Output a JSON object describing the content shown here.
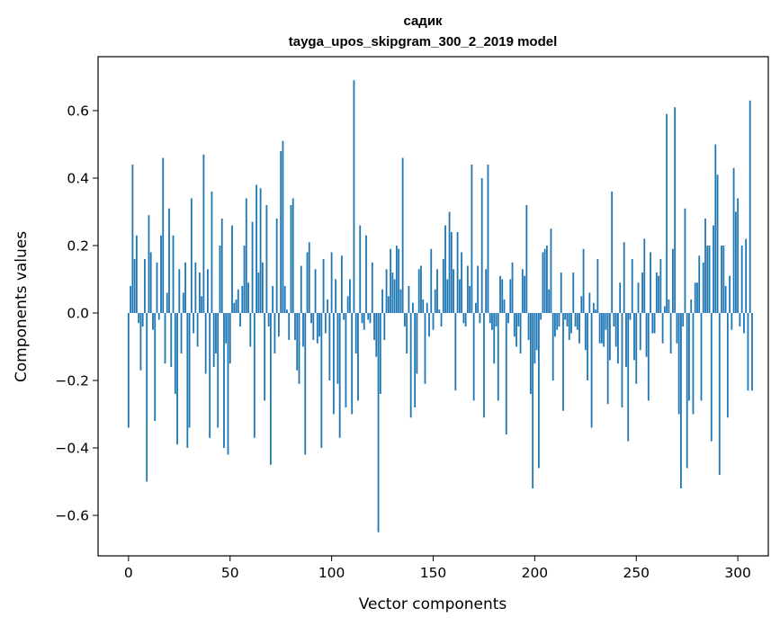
{
  "chart_data": {
    "type": "bar",
    "title_line1": "садик",
    "title_line2": "tayga_upos_skipgram_300_2_2019 model",
    "xlabel": "Vector components",
    "ylabel": "Components values",
    "xlim": [
      -15,
      315
    ],
    "ylim": [
      -0.72,
      0.76
    ],
    "x_ticks": [
      0,
      50,
      100,
      150,
      200,
      250,
      300
    ],
    "x_tick_labels": [
      "0",
      "50",
      "100",
      "150",
      "200",
      "250",
      "300"
    ],
    "y_ticks": [
      -0.6,
      -0.4,
      -0.2,
      0.0,
      0.2,
      0.4,
      0.6
    ],
    "y_tick_labels": [
      "−0.6",
      "−0.4",
      "−0.2",
      "0.0",
      "0.2",
      "0.4",
      "0.6"
    ],
    "bar_color": "#1f77b4",
    "values": [
      -0.34,
      0.08,
      0.44,
      0.16,
      0.23,
      -0.03,
      -0.17,
      -0.04,
      0.16,
      -0.5,
      0.29,
      0.18,
      -0.05,
      -0.32,
      0.15,
      -0.02,
      0.23,
      0.46,
      -0.15,
      0.06,
      0.31,
      -0.16,
      0.23,
      -0.24,
      -0.39,
      0.13,
      -0.12,
      0.06,
      0.15,
      -0.4,
      -0.34,
      0.34,
      -0.06,
      0.15,
      -0.1,
      0.12,
      0.05,
      0.47,
      -0.18,
      0.13,
      -0.37,
      0.36,
      -0.16,
      -0.12,
      -0.34,
      0.2,
      0.28,
      -0.4,
      -0.09,
      -0.42,
      -0.15,
      0.26,
      0.03,
      0.04,
      0.07,
      -0.04,
      0.08,
      0.2,
      0.34,
      0.09,
      -0.1,
      0.27,
      -0.37,
      0.38,
      0.12,
      0.37,
      0.15,
      -0.26,
      0.32,
      -0.04,
      -0.45,
      0.08,
      -0.12,
      0.28,
      -0.07,
      0.48,
      0.51,
      0.08,
      0.01,
      -0.08,
      0.32,
      0.34,
      -0.08,
      -0.17,
      -0.21,
      0.14,
      -0.1,
      -0.42,
      0.18,
      0.21,
      -0.03,
      -0.08,
      0.13,
      -0.09,
      -0.07,
      -0.4,
      0.16,
      -0.06,
      0.04,
      -0.2,
      0.18,
      -0.3,
      0.1,
      -0.21,
      -0.37,
      0.17,
      -0.02,
      -0.28,
      0.05,
      0.1,
      -0.3,
      0.69,
      -0.12,
      -0.26,
      0.26,
      -0.03,
      -0.05,
      0.23,
      -0.02,
      -0.03,
      0.15,
      -0.08,
      -0.13,
      -0.65,
      -0.24,
      0.07,
      -0.08,
      0.13,
      0.05,
      0.19,
      0.12,
      0.1,
      0.2,
      0.19,
      0.07,
      0.46,
      -0.04,
      -0.12,
      0.08,
      -0.31,
      0.03,
      -0.28,
      -0.18,
      0.13,
      0.14,
      0.04,
      -0.21,
      0.03,
      -0.07,
      0.19,
      -0.05,
      0.07,
      0.13,
      0.01,
      -0.04,
      0.16,
      0.26,
      0.1,
      0.3,
      0.24,
      0.13,
      -0.23,
      0.24,
      0.1,
      0.18,
      -0.03,
      -0.04,
      0.14,
      0.08,
      0.44,
      -0.26,
      0.03,
      0.14,
      -0.03,
      0.4,
      -0.31,
      0.13,
      0.44,
      -0.03,
      -0.05,
      -0.15,
      -0.04,
      -0.26,
      0.11,
      0.1,
      0.04,
      -0.36,
      -0.03,
      0.1,
      0.15,
      -0.07,
      -0.1,
      -0.04,
      -0.12,
      0.13,
      0.11,
      0.32,
      -0.08,
      -0.24,
      -0.52,
      -0.15,
      -0.11,
      -0.46,
      -0.02,
      0.18,
      0.19,
      0.2,
      0.07,
      0.25,
      -0.2,
      -0.07,
      -0.05,
      -0.04,
      0.12,
      -0.29,
      -0.02,
      -0.04,
      -0.08,
      -0.06,
      0.12,
      -0.04,
      -0.05,
      -0.09,
      0.05,
      0.19,
      -0.11,
      -0.2,
      0.06,
      -0.34,
      0.03,
      0.01,
      0.16,
      -0.09,
      -0.09,
      -0.1,
      -0.05,
      -0.27,
      -0.14,
      0.36,
      -0.04,
      -0.1,
      -0.15,
      0.09,
      -0.28,
      0.21,
      -0.16,
      -0.38,
      -0.02,
      0.16,
      -0.14,
      -0.21,
      0.09,
      -0.11,
      0.12,
      0.22,
      -0.13,
      -0.26,
      0.18,
      -0.06,
      -0.06,
      0.12,
      0.11,
      0.16,
      -0.09,
      0.02,
      0.59,
      0.04,
      -0.12,
      0.19,
      0.61,
      -0.09,
      -0.3,
      -0.52,
      -0.04,
      0.31,
      -0.46,
      -0.26,
      0.04,
      -0.3,
      0.09,
      0.09,
      0.17,
      -0.26,
      0.15,
      0.28,
      0.2,
      0.2,
      -0.38,
      0.26,
      0.5,
      0.41,
      -0.48,
      0.2,
      0.2,
      0.08,
      -0.31,
      0.11,
      -0.05,
      0.43,
      0.3,
      0.34,
      -0.04,
      0.2,
      -0.06,
      0.22,
      -0.23,
      0.63,
      -0.23
    ]
  }
}
